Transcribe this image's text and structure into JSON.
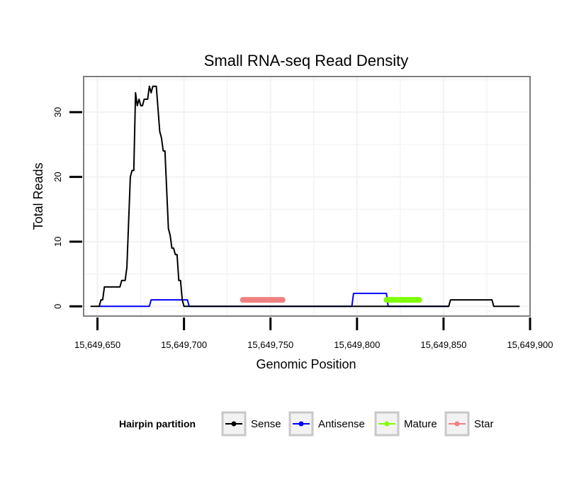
{
  "chart_data": {
    "type": "line",
    "title": "Small RNA-seq Read Density",
    "xlabel": "Genomic Position",
    "ylabel": "Total Reads",
    "xlim": [
      15649642,
      15649900
    ],
    "ylim": [
      -1.5,
      35.5
    ],
    "x_ticks": [
      15649650,
      15649700,
      15649750,
      15649800,
      15649850,
      15649900
    ],
    "x_tick_labels": [
      "15,649,650",
      "15,649,700",
      "15,649,750",
      "15,649,800",
      "15,649,850",
      "15,649,900"
    ],
    "y_ticks": [
      0,
      10,
      20,
      30
    ],
    "y_tick_labels": [
      "0",
      "10",
      "20",
      "30"
    ],
    "grid": true,
    "legend": {
      "title": "Hairpin partition",
      "placement": "bottom",
      "entries": [
        "Sense",
        "Antisense",
        "Mature",
        "Star"
      ]
    },
    "series": [
      {
        "name": "Sense",
        "color": "#000000",
        "x": [
          15649646,
          15649651,
          15649652,
          15649653,
          15649654,
          15649655,
          15649663,
          15649664,
          15649666,
          15649667,
          15649668,
          15649669,
          15649670,
          15649671,
          15649672,
          15649673,
          15649674,
          15649675,
          15649676,
          15649677,
          15649679,
          15649680,
          15649681,
          15649682,
          15649683,
          15649684,
          15649686,
          15649687,
          15649688,
          15649689,
          15649690,
          15649691,
          15649692,
          15649693,
          15649694,
          15649695,
          15649696,
          15649697,
          15649698,
          15649699,
          15649700,
          15649701,
          15649702,
          15649716,
          15649853,
          15649854,
          15649878,
          15649879,
          15649894
        ],
        "values": [
          0,
          0,
          1,
          1,
          3,
          3,
          3,
          4,
          4,
          6,
          13,
          20,
          21,
          21,
          33,
          31,
          32,
          31,
          31,
          32,
          32,
          34,
          33,
          34,
          34,
          34,
          27,
          26,
          24,
          24,
          18,
          12,
          11,
          9,
          9,
          8,
          8,
          4,
          4,
          1,
          0,
          0,
          0,
          0,
          0,
          1,
          1,
          0,
          0
        ]
      },
      {
        "name": "Antisense",
        "color": "#0000ff",
        "x": [
          15649651,
          15649680,
          15649681,
          15649702,
          15649703,
          15649733,
          15649734,
          15649756,
          15649757,
          15649797,
          15649798,
          15649817,
          15649818,
          15649852,
          15649853
        ],
        "values": [
          0,
          0,
          1,
          1,
          0,
          0,
          0,
          0,
          0,
          0,
          2,
          2,
          0,
          0,
          0
        ]
      },
      {
        "name": "Mature",
        "color": "#80ff00",
        "x": [
          15649817,
          15649836
        ],
        "values": [
          1,
          1
        ]
      },
      {
        "name": "Star",
        "color": "#f08080",
        "x": [
          15649734,
          15649757
        ],
        "values": [
          1,
          1
        ]
      }
    ]
  }
}
